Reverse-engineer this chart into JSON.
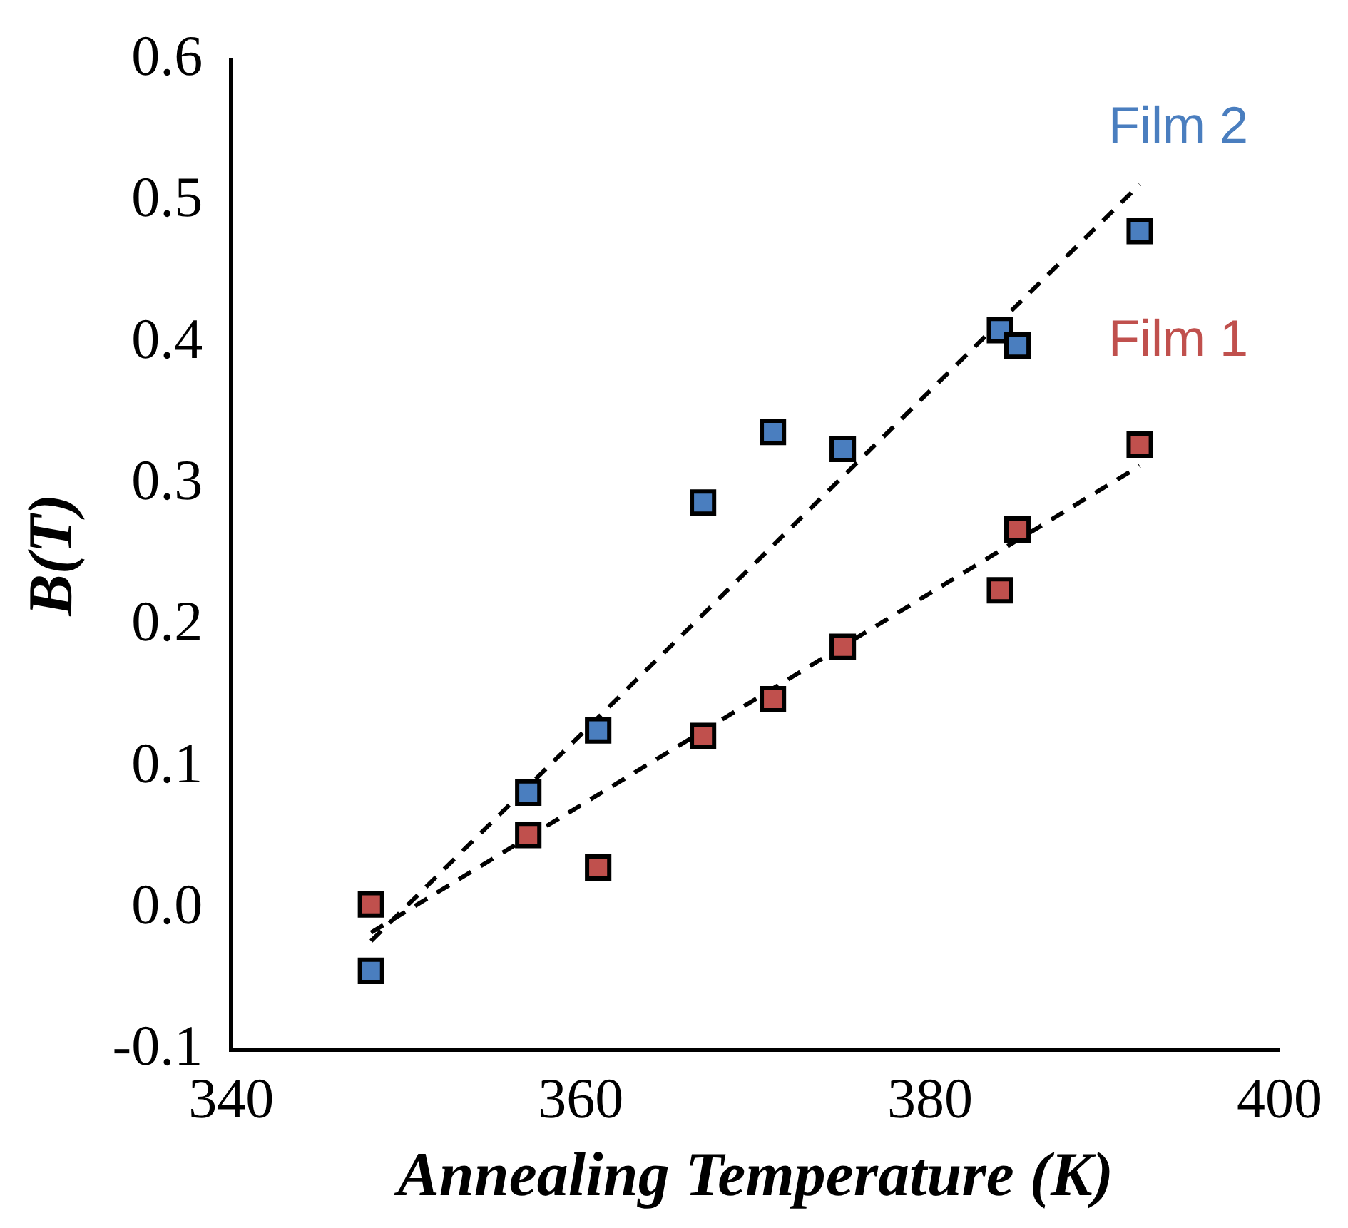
{
  "chart_data": {
    "type": "scatter",
    "xlabel": "Annealing Temperature (K)",
    "ylabel": "B(T)",
    "xlim": [
      340,
      400
    ],
    "xticks": [
      340,
      360,
      380,
      400
    ],
    "ylim": [
      -0.1,
      0.6
    ],
    "yticks": [
      -0.1,
      {
        "value": 0,
        "label": "0.0"
      },
      0.1,
      0.2,
      0.3,
      0.4,
      0.5,
      0.6
    ],
    "grid": false,
    "legend": false,
    "marker": "square",
    "series": [
      {
        "name": "Film 2",
        "color": "#4a7ebf",
        "x": [
          348,
          357,
          361,
          367,
          371,
          375,
          384,
          385,
          392
        ],
        "values": [
          -0.044,
          0.082,
          0.126,
          0.287,
          0.337,
          0.325,
          0.409,
          0.398,
          0.479
        ]
      },
      {
        "name": "Film 1",
        "color": "#c0504d",
        "x": [
          348,
          357,
          361,
          367,
          371,
          375,
          384,
          385,
          392
        ],
        "values": [
          0.003,
          0.052,
          0.029,
          0.122,
          0.148,
          0.185,
          0.225,
          0.268,
          0.328
        ]
      },
      {
        "type": "line",
        "color": "#000000",
        "line_style": "dashed",
        "marker": "none",
        "x": [
          348,
          392
        ],
        "values": [
          -0.023,
          0.512
        ]
      },
      {
        "type": "line",
        "color": "#000000",
        "line_style": "dashed",
        "marker": "none",
        "x": [
          348,
          392
        ],
        "values": [
          -0.017,
          0.313
        ]
      }
    ]
  }
}
